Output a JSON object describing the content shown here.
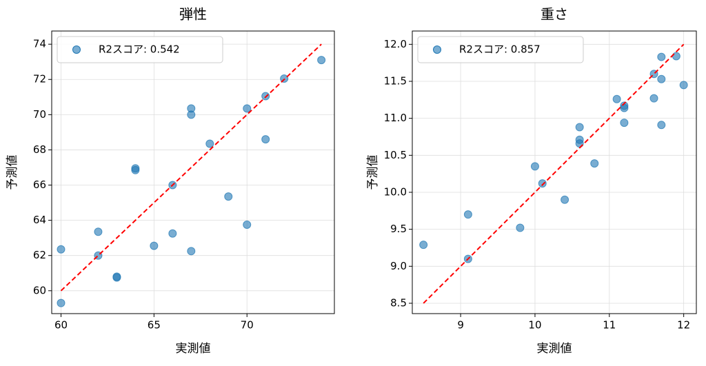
{
  "chart_data": [
    {
      "type": "scatter",
      "title": "弾性",
      "xlabel": "実測値",
      "ylabel": "予測値",
      "xlim": [
        59.5,
        74.7
      ],
      "ylim": [
        58.7,
        74.75
      ],
      "xticks": [
        60,
        65,
        70
      ],
      "yticks": [
        60,
        62,
        64,
        66,
        68,
        70,
        72,
        74
      ],
      "grid": true,
      "legend": "upper left",
      "series": [
        {
          "name": "R2スコア: 0.542",
          "color": "#1f77b4",
          "x": [
            60,
            60,
            62,
            62,
            63,
            63,
            64,
            64,
            65,
            66,
            66,
            67,
            67,
            67,
            68,
            69,
            70,
            70,
            71,
            71,
            72,
            74
          ],
          "values": [
            62.35,
            59.3,
            63.35,
            62.0,
            60.8,
            60.75,
            66.95,
            66.85,
            62.55,
            66.0,
            63.25,
            70.35,
            70.0,
            62.25,
            68.35,
            65.35,
            70.35,
            63.75,
            71.05,
            68.6,
            72.05,
            73.1
          ]
        }
      ],
      "diagonal": {
        "x": [
          60,
          74
        ],
        "values": [
          60,
          74
        ],
        "color": "#ff0000"
      }
    },
    {
      "type": "scatter",
      "title": "重さ",
      "xlabel": "実測値",
      "ylabel": "予測値",
      "xlim": [
        8.35,
        12.17
      ],
      "ylim": [
        8.36,
        12.18
      ],
      "xticks": [
        9,
        10,
        11,
        12
      ],
      "yticks": [
        {
          "value": 8.5,
          "label": "8.5"
        },
        {
          "value": 9,
          "label": "9.0"
        },
        {
          "value": 9.5,
          "label": "9.5"
        },
        {
          "value": 10,
          "label": "10.0"
        },
        {
          "value": 10.5,
          "label": "10.5"
        },
        {
          "value": 11,
          "label": "11.0"
        },
        {
          "value": 11.5,
          "label": "11.5"
        },
        {
          "value": 12,
          "label": "12.0"
        }
      ],
      "grid": true,
      "legend": "upper left",
      "series": [
        {
          "name": "R2スコア: 0.857",
          "color": "#1f77b4",
          "x": [
            8.5,
            9.1,
            9.1,
            9.8,
            10.0,
            10.1,
            10.4,
            10.6,
            10.6,
            10.6,
            10.8,
            11.1,
            11.2,
            11.2,
            11.2,
            11.6,
            11.6,
            11.7,
            11.7,
            11.7,
            11.9,
            12.0
          ],
          "values": [
            9.29,
            9.7,
            9.1,
            9.52,
            10.35,
            10.12,
            9.9,
            10.88,
            10.71,
            10.66,
            10.39,
            11.26,
            11.17,
            11.14,
            10.94,
            11.6,
            11.27,
            11.83,
            11.53,
            10.91,
            11.84,
            11.45
          ]
        }
      ],
      "diagonal": {
        "x": [
          8.5,
          12
        ],
        "values": [
          8.5,
          12
        ],
        "color": "#ff0000"
      }
    }
  ]
}
